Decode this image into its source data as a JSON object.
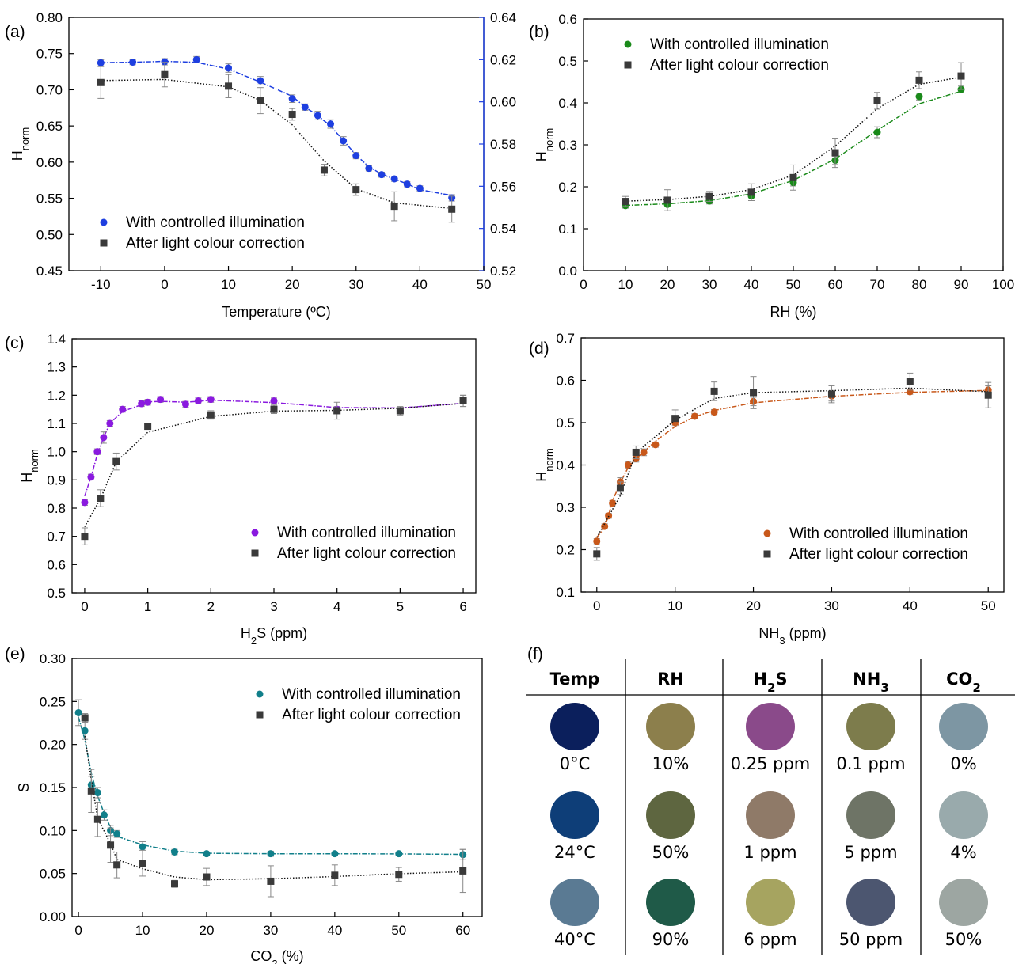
{
  "colors": {
    "a": "#1e3fe0",
    "b": "#1a8a1a",
    "c": "#8a1adf",
    "d": "#c8581a",
    "e": "#117f8a",
    "corrected": "#3a3a3a"
  },
  "legend": {
    "controlled": "With controlled illumination",
    "corrected": "After light colour correction"
  },
  "chart_data": [
    {
      "panel": "(a)",
      "type": "scatter",
      "xlabel": "Temperature (ºC)",
      "ylabel": "Hnorm",
      "xlim": [
        -15,
        50
      ],
      "ylim": [
        0.45,
        0.8
      ],
      "xticks": [
        "-10",
        "0",
        "10",
        "20",
        "30",
        "40",
        "50"
      ],
      "yticks": [
        "0.45",
        "0.50",
        "0.55",
        "0.60",
        "0.65",
        "0.70",
        "0.75",
        "0.80"
      ],
      "y2lim": [
        0.52,
        0.64
      ],
      "y2ticks": [
        "0.52",
        "0.54",
        "0.56",
        "0.58",
        "0.60",
        "0.62",
        "0.64"
      ],
      "legend_position": "bottom-left",
      "series": [
        {
          "name": "With controlled illumination",
          "axis": "right",
          "x": [
            -10,
            -5,
            0,
            5,
            10,
            15,
            20,
            22,
            24,
            26,
            28,
            30,
            32,
            34,
            36,
            38,
            40,
            45
          ],
          "y": [
            0.6185,
            0.6188,
            0.619,
            0.62,
            0.616,
            0.61,
            0.6015,
            0.5975,
            0.5935,
            0.5895,
            0.5815,
            0.5745,
            0.5685,
            0.5655,
            0.5635,
            0.561,
            0.559,
            0.5545
          ],
          "err": [
            0.0015,
            0.0012,
            0.0015,
            0.0015,
            0.002,
            0.002,
            0.0018,
            0.0015,
            0.002,
            0.002,
            0.002,
            0.0015,
            0.0012,
            0.0012,
            0.0012,
            0.0012,
            0.0012,
            0.0015
          ]
        },
        {
          "name": "After light colour correction",
          "axis": "left",
          "x": [
            -10,
            0,
            10,
            15,
            20,
            25,
            30,
            36,
            45
          ],
          "y": [
            0.71,
            0.721,
            0.705,
            0.685,
            0.666,
            0.589,
            0.562,
            0.539,
            0.535
          ],
          "err": [
            0.022,
            0.017,
            0.016,
            0.018,
            0.008,
            0.008,
            0.008,
            0.02,
            0.018
          ]
        }
      ]
    },
    {
      "panel": "(b)",
      "type": "scatter",
      "xlabel": "RH (%)",
      "ylabel": "Hnorm",
      "xlim": [
        0,
        100
      ],
      "ylim": [
        0.0,
        0.6
      ],
      "xticks": [
        "0",
        "10",
        "20",
        "30",
        "40",
        "50",
        "60",
        "70",
        "80",
        "90",
        "100"
      ],
      "yticks": [
        "0.0",
        "0.1",
        "0.2",
        "0.3",
        "0.4",
        "0.5",
        "0.6"
      ],
      "legend_position": "top-left",
      "series": [
        {
          "name": "With controlled illumination",
          "x": [
            10,
            20,
            30,
            40,
            50,
            60,
            70,
            80,
            90
          ],
          "y": [
            0.155,
            0.158,
            0.166,
            0.178,
            0.21,
            0.263,
            0.33,
            0.415,
            0.432
          ],
          "err": [
            0.006,
            0.006,
            0.007,
            0.007,
            0.008,
            0.01,
            0.013,
            0.008,
            0.008
          ]
        },
        {
          "name": "After light colour correction",
          "x": [
            10,
            20,
            30,
            40,
            50,
            60,
            70,
            80,
            90
          ],
          "y": [
            0.165,
            0.168,
            0.177,
            0.187,
            0.222,
            0.281,
            0.405,
            0.454,
            0.464
          ],
          "err": [
            0.012,
            0.025,
            0.012,
            0.02,
            0.03,
            0.035,
            0.02,
            0.02,
            0.032
          ]
        }
      ]
    },
    {
      "panel": "(c)",
      "type": "scatter",
      "xlabel": "H2S (ppm)",
      "ylabel": "Hnorm",
      "xlim": [
        -0.2,
        6.2
      ],
      "ylim": [
        0.5,
        1.4
      ],
      "xticks": [
        "0",
        "1",
        "2",
        "3",
        "4",
        "5",
        "6"
      ],
      "yticks": [
        "0.5",
        "0.6",
        "0.7",
        "0.8",
        "0.9",
        "1.0",
        "1.1",
        "1.2",
        "1.3",
        "1.4"
      ],
      "legend_position": "bottom-right",
      "series": [
        {
          "name": "With controlled illumination",
          "x": [
            0,
            0.1,
            0.2,
            0.3,
            0.4,
            0.6,
            0.9,
            1.0,
            1.2,
            1.6,
            1.8,
            2.0,
            3.0,
            4.0,
            5.0,
            6.0
          ],
          "y": [
            0.82,
            0.91,
            1.0,
            1.05,
            1.1,
            1.15,
            1.17,
            1.175,
            1.185,
            1.168,
            1.18,
            1.185,
            1.18,
            1.15,
            1.145,
            1.18
          ],
          "err": [
            0.01,
            0.01,
            0.01,
            0.02,
            0.01,
            0.01,
            0.01,
            0.01,
            0.01,
            0.01,
            0.01,
            0.01,
            0.01,
            0.01,
            0.01,
            0.02
          ]
        },
        {
          "name": "After light colour correction",
          "x": [
            0,
            0.25,
            0.5,
            1.0,
            2.0,
            3.0,
            4.0,
            5.0,
            6.0
          ],
          "y": [
            0.7,
            0.835,
            0.965,
            1.09,
            1.13,
            1.15,
            1.145,
            1.145,
            1.18
          ],
          "err": [
            0.03,
            0.03,
            0.03,
            0.01,
            0.015,
            0.015,
            0.03,
            0.015,
            0.02
          ]
        }
      ]
    },
    {
      "panel": "(d)",
      "type": "scatter",
      "xlabel": "NH3 (ppm)",
      "ylabel": "Hnorm",
      "xlim": [
        -2,
        52
      ],
      "ylim": [
        0.1,
        0.7
      ],
      "xticks": [
        "0",
        "10",
        "20",
        "30",
        "40",
        "50"
      ],
      "yticks": [
        "0.1",
        "0.2",
        "0.3",
        "0.4",
        "0.5",
        "0.6",
        "0.7"
      ],
      "legend_position": "bottom-right",
      "series": [
        {
          "name": "With controlled illumination",
          "x": [
            0,
            1,
            1.5,
            2,
            3,
            4,
            5,
            6,
            7.5,
            10,
            12.5,
            15,
            20,
            30,
            40,
            50
          ],
          "y": [
            0.22,
            0.255,
            0.28,
            0.31,
            0.36,
            0.4,
            0.415,
            0.43,
            0.448,
            0.5,
            0.515,
            0.525,
            0.55,
            0.563,
            0.573,
            0.577
          ],
          "err": [
            0.006,
            0.006,
            0.006,
            0.006,
            0.01,
            0.008,
            0.008,
            0.008,
            0.006,
            0.006,
            0.006,
            0.006,
            0.01,
            0.012,
            0.006,
            0.01
          ]
        },
        {
          "name": "After light colour correction",
          "x": [
            0,
            3,
            5,
            10,
            15,
            20,
            30,
            40,
            50
          ],
          "y": [
            0.19,
            0.345,
            0.43,
            0.51,
            0.574,
            0.571,
            0.567,
            0.597,
            0.565
          ],
          "err": [
            0.015,
            0.015,
            0.015,
            0.02,
            0.022,
            0.038,
            0.02,
            0.02,
            0.03
          ]
        }
      ]
    },
    {
      "panel": "(e)",
      "type": "scatter",
      "xlabel": "CO2 (%)",
      "ylabel": "S",
      "xlim": [
        -1,
        63
      ],
      "ylim": [
        0.0,
        0.3
      ],
      "xticks": [
        "0",
        "10",
        "20",
        "30",
        "40",
        "50",
        "60"
      ],
      "yticks": [
        "0.00",
        "0.05",
        "0.10",
        "0.15",
        "0.20",
        "0.25",
        "0.30"
      ],
      "legend_position": "top-right",
      "series": [
        {
          "name": "With controlled illumination",
          "x": [
            0,
            1,
            2,
            3,
            4,
            5,
            6,
            10,
            15,
            20,
            30,
            40,
            50,
            60
          ],
          "y": [
            0.237,
            0.216,
            0.153,
            0.144,
            0.118,
            0.1,
            0.096,
            0.081,
            0.075,
            0.073,
            0.073,
            0.073,
            0.073,
            0.072
          ],
          "err": [
            0.015,
            0.01,
            0.01,
            0.006,
            0.006,
            0.006,
            0.004,
            0.006,
            0.003,
            0.002,
            0.003,
            0.002,
            0.002,
            0.006
          ]
        },
        {
          "name": "After light colour correction",
          "x": [
            1,
            2,
            3,
            5,
            6,
            10,
            15,
            20,
            30,
            40,
            50,
            60
          ],
          "y": [
            0.231,
            0.146,
            0.113,
            0.083,
            0.06,
            0.062,
            0.038,
            0.046,
            0.041,
            0.048,
            0.049,
            0.053
          ],
          "err": [
            0.005,
            0.025,
            0.02,
            0.02,
            0.015,
            0.015,
            0.004,
            0.01,
            0.018,
            0.012,
            0.008,
            0.025
          ]
        }
      ]
    }
  ],
  "swatches": {
    "panel": "(f)",
    "headers": [
      "Temp",
      "RH",
      "H2S",
      "NH3",
      "CO2"
    ],
    "columns": [
      {
        "labels": [
          "0°C",
          "24°C",
          "40°C"
        ],
        "colors": [
          "#0b1f5c",
          "#0e3e78",
          "#5a7a93"
        ]
      },
      {
        "labels": [
          "10%",
          "50%",
          "90%"
        ],
        "colors": [
          "#8c7f4c",
          "#5e6640",
          "#1f5a48"
        ]
      },
      {
        "labels": [
          "0.25 ppm",
          "1 ppm",
          "6 ppm"
        ],
        "colors": [
          "#8a4a8a",
          "#8f7a68",
          "#a6a460"
        ]
      },
      {
        "labels": [
          "0.1 ppm",
          "5 ppm",
          "50 ppm"
        ],
        "colors": [
          "#7d7c4c",
          "#6e7466",
          "#4c5670"
        ]
      },
      {
        "labels": [
          "0%",
          "4%",
          "50%"
        ],
        "colors": [
          "#7d96a3",
          "#99aaac",
          "#9da6a2"
        ]
      }
    ]
  }
}
